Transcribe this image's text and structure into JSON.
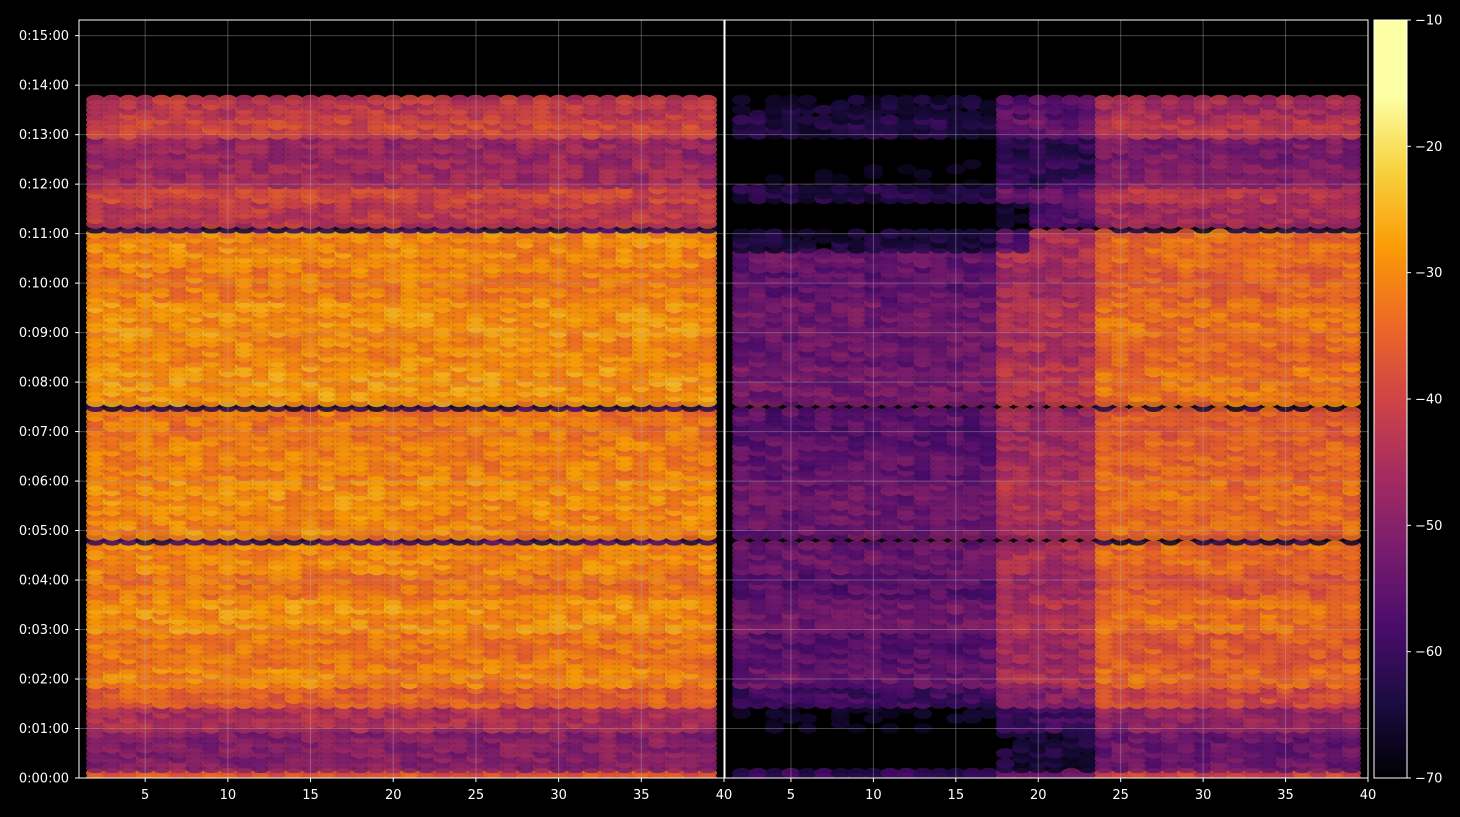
{
  "chart_data": {
    "type": "heatmap",
    "colormap": "inferno",
    "background": "#000000",
    "grid": true,
    "y_axis": {
      "range_seconds": [
        0,
        919
      ],
      "tick_labels": [
        "0:00:00",
        "0:01:00",
        "0:02:00",
        "0:03:00",
        "0:04:00",
        "0:05:00",
        "0:06:00",
        "0:07:00",
        "0:08:00",
        "0:09:00",
        "0:10:00",
        "0:11:00",
        "0:12:00",
        "0:13:00",
        "0:14:00",
        "0:15:00"
      ]
    },
    "panels": [
      {
        "x_range": [
          1,
          40
        ],
        "x_tick_labels": [
          "5",
          "10",
          "15",
          "20",
          "25",
          "30",
          "35",
          "40"
        ],
        "data_x_range": [
          2,
          39
        ],
        "data_time_range_seconds": [
          0,
          826
        ],
        "intensity": "high"
      },
      {
        "x_range": [
          1,
          40
        ],
        "x_tick_labels": [
          "5",
          "10",
          "15",
          "20",
          "25",
          "30",
          "35",
          "40"
        ],
        "data_x_range": [
          2,
          39
        ],
        "data_time_range_seconds": [
          0,
          826
        ],
        "intensity": "mixed"
      }
    ],
    "colorbar": {
      "range": [
        -70,
        -10
      ],
      "tick_labels": [
        "−10",
        "−20",
        "−30",
        "−40",
        "−50",
        "−60",
        "−70"
      ]
    },
    "bands": [
      {
        "t0": 0,
        "t1": 8,
        "level": 0.6
      },
      {
        "t0": 8,
        "t1": 60,
        "level": 0.35
      },
      {
        "t0": 60,
        "t1": 90,
        "level": 0.45
      },
      {
        "t0": 90,
        "t1": 110,
        "level": 0.62
      },
      {
        "t0": 110,
        "t1": 135,
        "level": 0.72
      },
      {
        "t0": 135,
        "t1": 175,
        "level": 0.68
      },
      {
        "t0": 175,
        "t1": 220,
        "level": 0.74
      },
      {
        "t0": 220,
        "t1": 250,
        "level": 0.68
      },
      {
        "t0": 250,
        "t1": 285,
        "level": 0.72
      },
      {
        "t0": 285,
        "t1": 290,
        "level": 0.15
      },
      {
        "t0": 290,
        "t1": 330,
        "level": 0.72
      },
      {
        "t0": 330,
        "t1": 365,
        "level": 0.73
      },
      {
        "t0": 365,
        "t1": 410,
        "level": 0.7
      },
      {
        "t0": 410,
        "t1": 448,
        "level": 0.68
      },
      {
        "t0": 448,
        "t1": 455,
        "level": 0.12
      },
      {
        "t0": 455,
        "t1": 500,
        "level": 0.75
      },
      {
        "t0": 500,
        "t1": 540,
        "level": 0.72
      },
      {
        "t0": 540,
        "t1": 580,
        "level": 0.74
      },
      {
        "t0": 580,
        "t1": 620,
        "level": 0.7
      },
      {
        "t0": 620,
        "t1": 662,
        "level": 0.72
      },
      {
        "t0": 662,
        "t1": 670,
        "level": 0.12
      },
      {
        "t0": 670,
        "t1": 700,
        "level": 0.5
      },
      {
        "t0": 700,
        "t1": 718,
        "level": 0.55
      },
      {
        "t0": 718,
        "t1": 750,
        "level": 0.42
      },
      {
        "t0": 750,
        "t1": 775,
        "level": 0.4
      },
      {
        "t0": 775,
        "t1": 800,
        "level": 0.55
      },
      {
        "t0": 800,
        "t1": 826,
        "level": 0.5
      }
    ]
  }
}
